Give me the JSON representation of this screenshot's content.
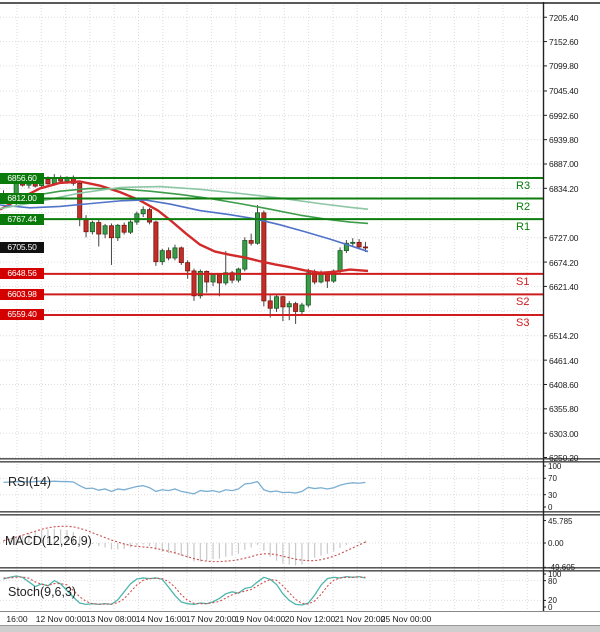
{
  "price_axis": {
    "ticks": [
      "7205.40",
      "7152.60",
      "7099.80",
      "7045.40",
      "6992.60",
      "6939.80",
      "6887.00",
      "6834.20",
      "6727.00",
      "6674.20",
      "6621.40",
      "6514.20",
      "6461.40",
      "6408.60",
      "6355.80",
      "6303.00",
      "6250.20"
    ],
    "current_price": {
      "value": "6705.50"
    }
  },
  "pivots": [
    {
      "id": "r3",
      "label": "R3",
      "value": "6856.60",
      "type": "resistance"
    },
    {
      "id": "r2",
      "label": "R2",
      "value": "6812.00",
      "type": "resistance"
    },
    {
      "id": "r1",
      "label": "R1",
      "value": "6767.44",
      "type": "resistance"
    },
    {
      "id": "s1",
      "label": "S1",
      "value": "6648.56",
      "type": "support"
    },
    {
      "id": "s2",
      "label": "S2",
      "value": "6603.98",
      "type": "support"
    },
    {
      "id": "s3",
      "label": "S3",
      "value": "6559.40",
      "type": "support"
    }
  ],
  "x_axis": {
    "labels": [
      "16:00",
      "12 Nov 00:00",
      "13 Nov 08:00",
      "14 Nov 16:00",
      "17 Nov 20:00",
      "19 Nov 04:00",
      "20 Nov 12:00",
      "21 Nov 20:00",
      "25 Nov 00:00"
    ]
  },
  "indicators": {
    "rsi": {
      "label": "RSI(14)",
      "ticks": [
        "100",
        "70",
        "30",
        "0"
      ],
      "tick_values": [
        100,
        70,
        30,
        0
      ]
    },
    "macd": {
      "label": "MACD(12,26,9)",
      "ticks": [
        "45.785",
        "0.00",
        "-49.605"
      ],
      "tick_values": [
        45.785,
        0,
        -49.605
      ]
    },
    "stoch": {
      "label": "Stoch(9,6,3)",
      "ticks": [
        "100",
        "80",
        "20",
        "0"
      ],
      "tick_values": [
        100,
        80,
        20,
        0
      ]
    }
  },
  "colors": {
    "resistance": "#0c7d0c",
    "support": "#cf1d1d",
    "badge_resistance": "#0a7a0a",
    "badge_support": "#d40000",
    "badge_price": "#111111",
    "candle_up": "#3b9c46",
    "candle_up_border": "#145c24",
    "candle_down": "#c03028",
    "candle_down_border": "#7c140f",
    "wick": "#444444",
    "ma_red": "#d22a2a",
    "ma_blue": "#5073c8",
    "ma_green": "#3d9d4b",
    "ma_teal": "#8cc6a4",
    "rsi_line": "#7aaed2",
    "stoch_k": "#4db6ac",
    "stoch_d": "#d05050",
    "macd_hist": "#c9c9c9",
    "macd_signal": "#c44f4d",
    "grid": "#dcdcdc",
    "separator": "#5a5a5a",
    "axis_line": "#222222"
  },
  "chart_data": {
    "type": "candlestick",
    "title": "",
    "x_labels": [
      "16:00",
      "12 Nov 00:00",
      "13 Nov 08:00",
      "14 Nov 16:00",
      "17 Nov 20:00",
      "19 Nov 04:00",
      "20 Nov 12:00",
      "21 Nov 20:00",
      "25 Nov 00:00"
    ],
    "price_range": [
      6250.2,
      7205.4
    ],
    "pivot_levels": {
      "r3": 6856.6,
      "r2": 6812.0,
      "r1": 6767.44,
      "s1": 6648.56,
      "s2": 6603.98,
      "s3": 6559.4
    },
    "last_price": 6705.5,
    "candles_ohlc": [
      [
        6820,
        6830,
        6806,
        6812
      ],
      [
        6812,
        6822,
        6804,
        6818
      ],
      [
        6814,
        6856,
        6794,
        6850
      ],
      [
        6848,
        6858,
        6838,
        6841
      ],
      [
        6841,
        6852,
        6834,
        6849
      ],
      [
        6849,
        6854,
        6836,
        6839
      ],
      [
        6840,
        6861,
        6836,
        6854
      ],
      [
        6854,
        6860,
        6842,
        6844
      ],
      [
        6845,
        6865,
        6840,
        6857
      ],
      [
        6857,
        6862,
        6846,
        6850
      ],
      [
        6850,
        6860,
        6844,
        6858
      ],
      [
        6858,
        6862,
        6840,
        6845
      ],
      [
        6845,
        6850,
        6752,
        6768
      ],
      [
        6768,
        6776,
        6728,
        6740
      ],
      [
        6740,
        6764,
        6734,
        6760
      ],
      [
        6760,
        6766,
        6708,
        6735
      ],
      [
        6735,
        6757,
        6726,
        6753
      ],
      [
        6753,
        6758,
        6668,
        6727
      ],
      [
        6727,
        6757,
        6720,
        6754
      ],
      [
        6754,
        6760,
        6734,
        6739
      ],
      [
        6739,
        6765,
        6735,
        6761
      ],
      [
        6761,
        6784,
        6755,
        6779
      ],
      [
        6779,
        6795,
        6772,
        6788
      ],
      [
        6788,
        6792,
        6756,
        6761
      ],
      [
        6761,
        6764,
        6666,
        6675
      ],
      [
        6675,
        6703,
        6668,
        6699
      ],
      [
        6699,
        6706,
        6678,
        6683
      ],
      [
        6683,
        6712,
        6678,
        6705
      ],
      [
        6705,
        6708,
        6668,
        6673
      ],
      [
        6673,
        6678,
        6638,
        6655
      ],
      [
        6655,
        6660,
        6590,
        6601
      ],
      [
        6601,
        6658,
        6595,
        6654
      ],
      [
        6654,
        6656,
        6608,
        6631
      ],
      [
        6631,
        6650,
        6622,
        6647
      ],
      [
        6647,
        6649,
        6600,
        6629
      ],
      [
        6629,
        6698,
        6624,
        6651
      ],
      [
        6651,
        6655,
        6628,
        6635
      ],
      [
        6635,
        6662,
        6630,
        6659
      ],
      [
        6659,
        6728,
        6654,
        6721
      ],
      [
        6721,
        6736,
        6710,
        6715
      ],
      [
        6715,
        6798,
        6712,
        6781
      ],
      [
        6781,
        6786,
        6578,
        6590
      ],
      [
        6590,
        6602,
        6554,
        6574
      ],
      [
        6574,
        6604,
        6566,
        6599
      ],
      [
        6599,
        6601,
        6546,
        6577
      ],
      [
        6577,
        6590,
        6548,
        6584
      ],
      [
        6584,
        6588,
        6540,
        6567
      ],
      [
        6567,
        6586,
        6560,
        6581
      ],
      [
        6581,
        6660,
        6576,
        6651
      ],
      [
        6651,
        6658,
        6626,
        6631
      ],
      [
        6631,
        6656,
        6628,
        6649
      ],
      [
        6649,
        6652,
        6618,
        6633
      ],
      [
        6633,
        6658,
        6629,
        6655
      ],
      [
        6655,
        6706,
        6650,
        6699
      ],
      [
        6699,
        6722,
        6694,
        6715
      ],
      [
        6715,
        6726,
        6708,
        6717
      ],
      [
        6717,
        6724,
        6702,
        6707
      ],
      [
        6707,
        6718,
        6696,
        6705.5
      ]
    ],
    "overlays": [
      {
        "name": "ma-red",
        "points": [
          [
            0,
            6788
          ],
          [
            20,
            6812
          ],
          [
            40,
            6834
          ],
          [
            60,
            6846
          ],
          [
            80,
            6849
          ],
          [
            100,
            6840
          ],
          [
            120,
            6826
          ],
          [
            140,
            6808
          ],
          [
            158,
            6786
          ],
          [
            172,
            6762
          ],
          [
            186,
            6736
          ],
          [
            200,
            6712
          ],
          [
            215,
            6697
          ],
          [
            230,
            6690
          ],
          [
            245,
            6684
          ],
          [
            260,
            6676
          ],
          [
            275,
            6669
          ],
          [
            290,
            6663
          ],
          [
            305,
            6656
          ],
          [
            320,
            6651
          ],
          [
            335,
            6653
          ],
          [
            350,
            6658
          ],
          [
            368,
            6655
          ]
        ]
      },
      {
        "name": "ma-blue",
        "points": [
          [
            0,
            6798
          ],
          [
            30,
            6792
          ],
          [
            60,
            6795
          ],
          [
            90,
            6801
          ],
          [
            120,
            6807
          ],
          [
            145,
            6809
          ],
          [
            170,
            6800
          ],
          [
            200,
            6786
          ],
          [
            230,
            6777
          ],
          [
            255,
            6768
          ],
          [
            280,
            6755
          ],
          [
            305,
            6740
          ],
          [
            330,
            6724
          ],
          [
            350,
            6710
          ],
          [
            368,
            6697
          ]
        ]
      },
      {
        "name": "ma-green",
        "points": [
          [
            0,
            6802
          ],
          [
            30,
            6817
          ],
          [
            60,
            6828
          ],
          [
            90,
            6834
          ],
          [
            120,
            6833
          ],
          [
            150,
            6828
          ],
          [
            180,
            6821
          ],
          [
            210,
            6812
          ],
          [
            240,
            6801
          ],
          [
            270,
            6789
          ],
          [
            300,
            6776
          ],
          [
            330,
            6766
          ],
          [
            350,
            6761
          ],
          [
            368,
            6758
          ]
        ]
      },
      {
        "name": "ma-teal",
        "points": [
          [
            0,
            6790
          ],
          [
            40,
            6806
          ],
          [
            80,
            6824
          ],
          [
            120,
            6836
          ],
          [
            160,
            6838
          ],
          [
            200,
            6832
          ],
          [
            240,
            6823
          ],
          [
            280,
            6813
          ],
          [
            320,
            6801
          ],
          [
            350,
            6793
          ],
          [
            368,
            6789
          ]
        ]
      }
    ],
    "rsi": {
      "range": [
        0,
        100
      ],
      "values": [
        60,
        61,
        62,
        62,
        61,
        62,
        63,
        62,
        63,
        62,
        62,
        61,
        52,
        45,
        46,
        41,
        44,
        38,
        44,
        42,
        46,
        50,
        52,
        47,
        38,
        42,
        40,
        44,
        38,
        35,
        32,
        40,
        38,
        40,
        36,
        42,
        40,
        44,
        56,
        58,
        62,
        42,
        37,
        39,
        35,
        36,
        34,
        38,
        48,
        45,
        47,
        44,
        47,
        53,
        57,
        59,
        58,
        60
      ]
    },
    "macd": {
      "range": [
        -49.605,
        45.785
      ],
      "histogram": [
        6,
        9,
        13,
        17,
        20,
        23,
        26,
        28,
        29,
        28,
        26,
        22,
        14,
        5,
        -2,
        -6,
        -9,
        -13,
        -13,
        -12,
        -9,
        -5,
        -3,
        -6,
        -14,
        -18,
        -21,
        -22,
        -26,
        -31,
        -38,
        -38,
        -36,
        -33,
        -32,
        -28,
        -26,
        -22,
        -14,
        -9,
        -4,
        -16,
        -28,
        -36,
        -42,
        -44,
        -46,
        -44,
        -36,
        -30,
        -26,
        -22,
        -17,
        -10,
        -4,
        0,
        3,
        5
      ],
      "signal": [
        5,
        8,
        12,
        16,
        20,
        24,
        28,
        31,
        33,
        34,
        34,
        33,
        30,
        26,
        21,
        16,
        11,
        6,
        2,
        -2,
        -5,
        -7,
        -8,
        -9,
        -11,
        -14,
        -17,
        -20,
        -24,
        -28,
        -32,
        -35,
        -37,
        -38,
        -38,
        -37,
        -36,
        -34,
        -31,
        -28,
        -24,
        -22,
        -22,
        -24,
        -27,
        -30,
        -33,
        -35,
        -36,
        -36,
        -34,
        -31,
        -27,
        -22,
        -16,
        -10,
        -4,
        2
      ]
    },
    "stoch": {
      "range": [
        0,
        100
      ],
      "k": [
        85,
        90,
        94,
        90,
        76,
        62,
        70,
        64,
        80,
        70,
        50,
        30,
        12,
        8,
        10,
        8,
        10,
        8,
        22,
        46,
        70,
        85,
        88,
        86,
        88,
        84,
        60,
        35,
        15,
        10,
        8,
        12,
        10,
        16,
        26,
        40,
        46,
        42,
        56,
        60,
        76,
        90,
        84,
        68,
        40,
        20,
        8,
        6,
        12,
        36,
        66,
        86,
        90,
        88,
        92,
        90,
        92,
        88
      ],
      "d": [
        88,
        88,
        90,
        91,
        87,
        76,
        69,
        65,
        71,
        71,
        67,
        50,
        31,
        17,
        10,
        9,
        9,
        9,
        13,
        25,
        46,
        67,
        81,
        86,
        87,
        86,
        77,
        60,
        37,
        20,
        11,
        10,
        10,
        13,
        17,
        27,
        37,
        43,
        48,
        53,
        64,
        75,
        83,
        81,
        64,
        43,
        23,
        11,
        9,
        18,
        38,
        63,
        81,
        88,
        90,
        90,
        91,
        90
      ]
    }
  }
}
